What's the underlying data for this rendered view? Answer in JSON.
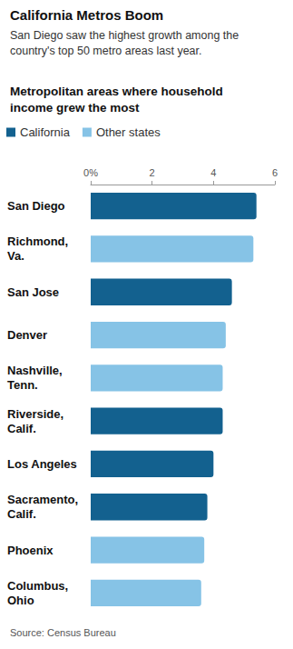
{
  "chart_data": {
    "type": "bar",
    "orientation": "horizontal",
    "title": "California Metros Boom",
    "subtitle": "San Diego saw the highest growth among the country's top 50 metro areas last year.",
    "heading": "Metropolitan areas where household income grew the most",
    "source": "Source: Census Bureau",
    "categories": [
      "San Diego",
      "Richmond, Va.",
      "San Jose",
      "Denver",
      "Nashville, Tenn.",
      "Riverside, Calif.",
      "Los Angeles",
      "Sacramento, Calif.",
      "Phoenix",
      "Columbus, Ohio"
    ],
    "series": [
      {
        "name": "California",
        "color": "#13618f",
        "values": [
          5.4,
          null,
          4.6,
          null,
          null,
          4.3,
          4.0,
          3.8,
          null,
          null
        ]
      },
      {
        "name": "Other states",
        "color": "#86c3e6",
        "values": [
          null,
          5.3,
          null,
          4.4,
          4.3,
          null,
          null,
          null,
          3.7,
          3.6
        ]
      }
    ],
    "xlim": [
      0,
      6
    ],
    "xticks": [
      {
        "value": 0,
        "label": "0%"
      },
      2,
      4,
      6
    ],
    "grid": false,
    "legend": "top-left"
  }
}
